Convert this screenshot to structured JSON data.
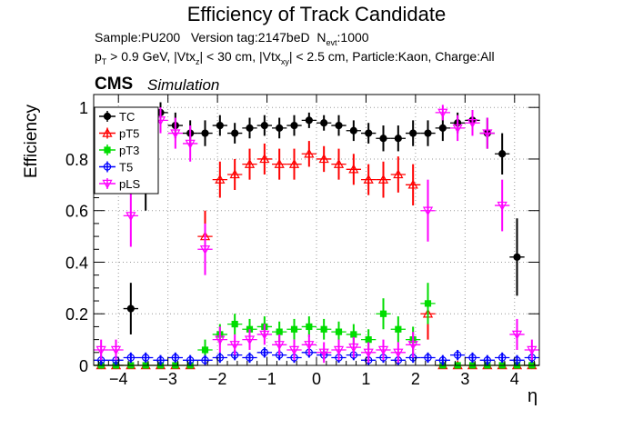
{
  "title": "Efficiency of Track Candidate",
  "meta": {
    "sample": "Sample:PU200",
    "version": "Version tag:2147beD",
    "nevt_prefix": "N",
    "nevt_sub": "evt",
    "nevt_value": ":1000",
    "pt_prefix": "p",
    "pt_sub": "T",
    "cut_a": " > 0.9 GeV, |Vtx",
    "vtxz_sub": "z",
    "cut_b": "| < 30 cm, |Vtx",
    "vtxxy_sub": "xy",
    "cut_c": "| < 2.5 cm, Particle:Kaon, Charge:All"
  },
  "cms_label": "CMS",
  "simulation_label": "Simulation",
  "chart_data": {
    "type": "scatter",
    "title": "Efficiency of Track Candidate",
    "xlabel": "η",
    "ylabel": "Efficiency",
    "xlim": [
      -4.5,
      4.5
    ],
    "ylim": [
      0,
      1.05
    ],
    "xticks": [
      -4,
      -3,
      -2,
      -1,
      0,
      1,
      2,
      3,
      4
    ],
    "yticks": [
      0,
      0.2,
      0.4,
      0.6,
      0.8,
      1
    ],
    "ytick_labels": [
      "0",
      "0.2",
      "0.4",
      "0.6",
      "0.8",
      "1"
    ],
    "grid": true,
    "legend_position": "top-left",
    "eta_bin_centers": [
      -4.35,
      -4.05,
      -3.75,
      -3.45,
      -3.15,
      -2.85,
      -2.55,
      -2.25,
      -1.95,
      -1.65,
      -1.35,
      -1.05,
      -0.75,
      -0.45,
      -0.15,
      0.15,
      0.45,
      0.75,
      1.05,
      1.35,
      1.65,
      1.95,
      2.25,
      2.55,
      2.85,
      3.15,
      3.45,
      3.75,
      4.05,
      4.35
    ],
    "series": [
      {
        "name": "TC",
        "color": "#000000",
        "marker": "filled-circle",
        "values": [
          0.0,
          0.0,
          0.22,
          0.7,
          0.98,
          0.93,
          0.9,
          0.9,
          0.93,
          0.9,
          0.92,
          0.93,
          0.92,
          0.93,
          0.95,
          0.94,
          0.93,
          0.91,
          0.9,
          0.88,
          0.88,
          0.9,
          0.9,
          0.92,
          0.94,
          0.95,
          0.9,
          0.82,
          0.42,
          0.0
        ],
        "errors": [
          0.03,
          0.03,
          0.1,
          0.1,
          0.04,
          0.05,
          0.05,
          0.05,
          0.04,
          0.04,
          0.04,
          0.04,
          0.04,
          0.04,
          0.03,
          0.03,
          0.04,
          0.04,
          0.04,
          0.05,
          0.05,
          0.05,
          0.05,
          0.05,
          0.04,
          0.04,
          0.06,
          0.08,
          0.15,
          0.03
        ]
      },
      {
        "name": "pT5",
        "color": "#ff0000",
        "marker": "open-triangle-up",
        "values": [
          0.0,
          0.0,
          0.0,
          0.0,
          0.0,
          0.0,
          0.0,
          0.5,
          0.72,
          0.74,
          0.78,
          0.8,
          0.78,
          0.78,
          0.82,
          0.8,
          0.78,
          0.76,
          0.72,
          0.72,
          0.74,
          0.7,
          0.2,
          0.0,
          0.0,
          0.0,
          0.0,
          0.0,
          0.0,
          0.0
        ],
        "errors": [
          0,
          0,
          0,
          0,
          0,
          0,
          0,
          0.1,
          0.07,
          0.06,
          0.06,
          0.06,
          0.06,
          0.06,
          0.05,
          0.05,
          0.06,
          0.06,
          0.06,
          0.07,
          0.07,
          0.08,
          0.1,
          0,
          0,
          0,
          0,
          0,
          0,
          0
        ]
      },
      {
        "name": "pT3",
        "color": "#00dd00",
        "marker": "filled-square",
        "values": [
          0.0,
          0.0,
          0.0,
          0.0,
          0.0,
          0.0,
          0.0,
          0.06,
          0.12,
          0.16,
          0.14,
          0.15,
          0.13,
          0.14,
          0.15,
          0.14,
          0.13,
          0.12,
          0.1,
          0.2,
          0.14,
          0.1,
          0.24,
          0.0,
          0.0,
          0.0,
          0.0,
          0.0,
          0.0,
          0.0
        ],
        "errors": [
          0,
          0,
          0,
          0,
          0,
          0,
          0,
          0.04,
          0.04,
          0.04,
          0.04,
          0.04,
          0.04,
          0.04,
          0.04,
          0.04,
          0.04,
          0.04,
          0.04,
          0.06,
          0.05,
          0.05,
          0.08,
          0,
          0,
          0,
          0,
          0,
          0,
          0
        ]
      },
      {
        "name": "T5",
        "color": "#0000ff",
        "marker": "open-circle",
        "values": [
          0.02,
          0.02,
          0.03,
          0.03,
          0.02,
          0.03,
          0.02,
          0.02,
          0.03,
          0.04,
          0.03,
          0.05,
          0.04,
          0.03,
          0.05,
          0.04,
          0.03,
          0.04,
          0.02,
          0.03,
          0.02,
          0.03,
          0.03,
          0.02,
          0.04,
          0.03,
          0.02,
          0.03,
          0.02,
          0.03
        ],
        "errors": [
          0.02,
          0.02,
          0.02,
          0.02,
          0.02,
          0.02,
          0.02,
          0.02,
          0.02,
          0.02,
          0.02,
          0.02,
          0.02,
          0.02,
          0.02,
          0.02,
          0.02,
          0.02,
          0.02,
          0.02,
          0.02,
          0.02,
          0.02,
          0.02,
          0.02,
          0.02,
          0.02,
          0.02,
          0.02,
          0.02
        ]
      },
      {
        "name": "pLS",
        "color": "#ff00ff",
        "marker": "open-triangle-down",
        "values": [
          0.06,
          0.06,
          0.58,
          0.9,
          0.95,
          0.9,
          0.86,
          0.45,
          0.1,
          0.08,
          0.1,
          0.12,
          0.08,
          0.06,
          0.08,
          0.05,
          0.06,
          0.07,
          0.05,
          0.06,
          0.05,
          0.08,
          0.6,
          0.98,
          0.92,
          0.94,
          0.9,
          0.62,
          0.12,
          0.06
        ],
        "errors": [
          0.04,
          0.04,
          0.12,
          0.06,
          0.05,
          0.06,
          0.07,
          0.1,
          0.05,
          0.04,
          0.04,
          0.04,
          0.04,
          0.04,
          0.04,
          0.04,
          0.04,
          0.04,
          0.04,
          0.04,
          0.04,
          0.05,
          0.12,
          0.03,
          0.05,
          0.05,
          0.06,
          0.1,
          0.06,
          0.04
        ]
      }
    ]
  }
}
